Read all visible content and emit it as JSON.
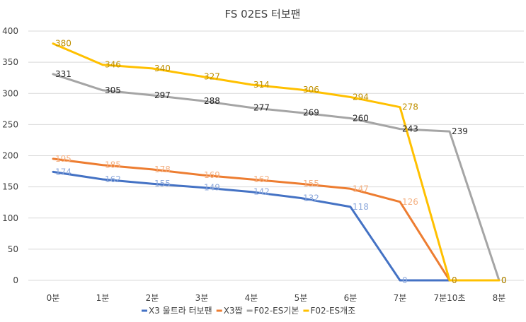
{
  "chart_data": {
    "type": "line",
    "title": "FS 02ES 터보팬",
    "xlabel": "",
    "ylabel": "",
    "categories": [
      "0분",
      "1분",
      "2분",
      "3분",
      "4분",
      "5분",
      "6분",
      "7분",
      "7분10초",
      "8분"
    ],
    "ylim": [
      0,
      400
    ],
    "yticks": [
      0,
      50,
      100,
      150,
      200,
      250,
      300,
      350,
      400
    ],
    "grid": true,
    "legend": "bottom",
    "series": [
      {
        "name": "X3 울트라 터보팬",
        "color": "#4472C4",
        "label_color": "#8FAADC",
        "values": [
          174,
          162,
          155,
          149,
          142,
          132,
          118,
          0,
          0,
          null
        ]
      },
      {
        "name": "X3짭",
        "color": "#ED7D31",
        "label_color": "#F4B183",
        "values": [
          195,
          185,
          178,
          169,
          162,
          155,
          147,
          126,
          0,
          null
        ]
      },
      {
        "name": "F02-ES기본",
        "color": "#A5A5A5",
        "label_color": "#262626",
        "values": [
          331,
          305,
          297,
          288,
          277,
          269,
          260,
          243,
          239,
          0
        ]
      },
      {
        "name": "F02-ES개조",
        "color": "#FFC000",
        "label_color": "#BF9000",
        "values": [
          380,
          346,
          340,
          327,
          314,
          306,
          294,
          278,
          0,
          0
        ]
      }
    ]
  }
}
